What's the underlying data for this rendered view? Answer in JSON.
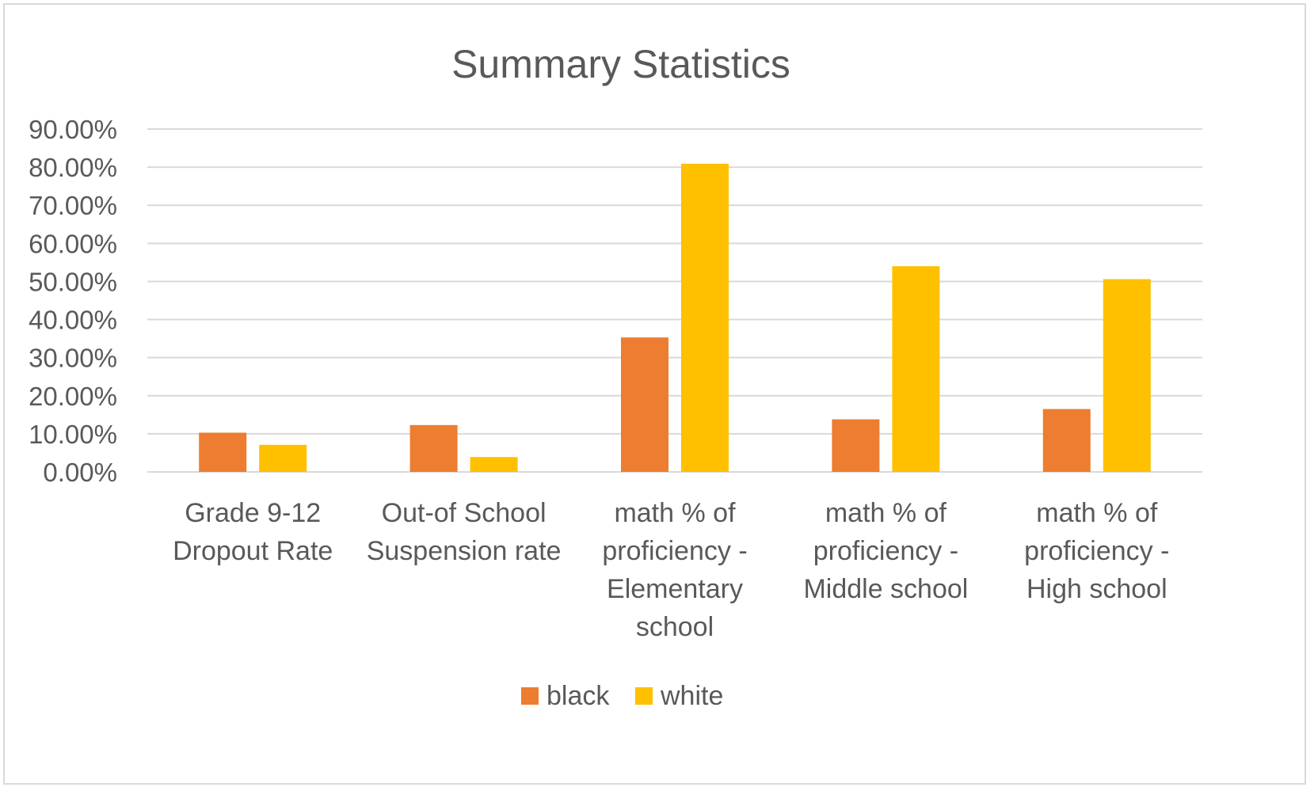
{
  "chart_data": {
    "type": "bar",
    "title": "Summary Statistics",
    "xlabel": "",
    "ylabel": "",
    "ylim": [
      0,
      0.9
    ],
    "y_tick_step": 0.1,
    "y_tick_format": "percent_2dp",
    "grid": true,
    "legend_position": "bottom",
    "categories": [
      [
        "Grade 9-12",
        "Dropout Rate"
      ],
      [
        "Out-of School",
        "Suspension rate"
      ],
      [
        "math % of",
        "proficiency -",
        "Elementary",
        "school"
      ],
      [
        "math % of",
        "proficiency -",
        "Middle school"
      ],
      [
        "math % of",
        "proficiency -",
        "High school"
      ]
    ],
    "series": [
      {
        "name": "black",
        "color": "#ED7D31",
        "values": [
          0.103,
          0.123,
          0.353,
          0.138,
          0.165
        ]
      },
      {
        "name": "white",
        "color": "#FFC000",
        "values": [
          0.071,
          0.039,
          0.809,
          0.54,
          0.506
        ]
      }
    ]
  }
}
